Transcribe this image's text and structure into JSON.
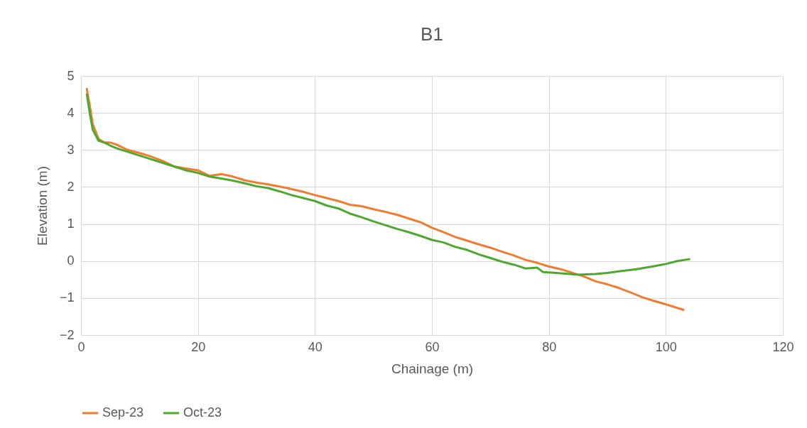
{
  "chart_data": {
    "type": "line",
    "title": "B1",
    "xlabel": "Chainage (m)",
    "ylabel": "Elevation (m)",
    "xlim": [
      0,
      120
    ],
    "xticks": [
      0,
      20,
      40,
      60,
      80,
      100,
      120
    ],
    "ylim": [
      -2,
      5
    ],
    "yticks": [
      -2,
      -1,
      0,
      1,
      2,
      3,
      4,
      5
    ],
    "grid": true,
    "legend": "bottom",
    "marker": "none",
    "line_style": "solid",
    "x": [
      1,
      1.5,
      2,
      3,
      4,
      5,
      6,
      8,
      10,
      12,
      14,
      16,
      18,
      20,
      22,
      24,
      26,
      28,
      30,
      32,
      35,
      38,
      40,
      42,
      44,
      46,
      48,
      50,
      52,
      54,
      56,
      58,
      60,
      62,
      64,
      66,
      68,
      70,
      72,
      74,
      76,
      78,
      80,
      82,
      84,
      86,
      88,
      90,
      92,
      94,
      96,
      98,
      100,
      103
    ],
    "series": [
      {
        "name": "Sep-23",
        "color": "#ed7d31",
        "values": [
          4.65,
          4.2,
          3.7,
          3.3,
          3.2,
          3.2,
          3.15,
          3.0,
          2.92,
          2.82,
          2.7,
          2.55,
          2.5,
          2.45,
          2.3,
          2.35,
          2.28,
          2.18,
          2.12,
          2.07,
          1.98,
          1.87,
          1.78,
          1.7,
          1.62,
          1.52,
          1.48,
          1.4,
          1.33,
          1.25,
          1.15,
          1.05,
          0.9,
          0.78,
          0.65,
          0.55,
          0.45,
          0.36,
          0.25,
          0.15,
          0.03,
          -0.05,
          -0.15,
          -0.22,
          -0.32,
          -0.42,
          -0.55,
          -0.63,
          -0.73,
          -0.85,
          -0.98,
          -1.08,
          -1.17,
          -1.32
        ]
      },
      {
        "name": "Oct-23",
        "color": "#4ea72e",
        "x": [
          1,
          1.5,
          2,
          3,
          4,
          5,
          6,
          8,
          10,
          12,
          14,
          16,
          18,
          20,
          22,
          24,
          26,
          28,
          30,
          32,
          34,
          36,
          38,
          40,
          42,
          44,
          46,
          48,
          50,
          52,
          54,
          56,
          58,
          60,
          62,
          64,
          66,
          68,
          70,
          72,
          74,
          76,
          78,
          79,
          82,
          85,
          88,
          90,
          92,
          95,
          98,
          100,
          102,
          104
        ],
        "values": [
          4.5,
          4.0,
          3.55,
          3.25,
          3.2,
          3.12,
          3.05,
          2.95,
          2.85,
          2.75,
          2.65,
          2.55,
          2.45,
          2.38,
          2.28,
          2.23,
          2.17,
          2.1,
          2.02,
          1.97,
          1.88,
          1.78,
          1.7,
          1.62,
          1.5,
          1.42,
          1.28,
          1.18,
          1.07,
          0.97,
          0.87,
          0.78,
          0.68,
          0.57,
          0.5,
          0.38,
          0.3,
          0.18,
          0.08,
          -0.02,
          -0.1,
          -0.2,
          -0.18,
          -0.3,
          -0.33,
          -0.37,
          -0.35,
          -0.32,
          -0.28,
          -0.22,
          -0.14,
          -0.08,
          0.0,
          0.05
        ]
      }
    ]
  }
}
